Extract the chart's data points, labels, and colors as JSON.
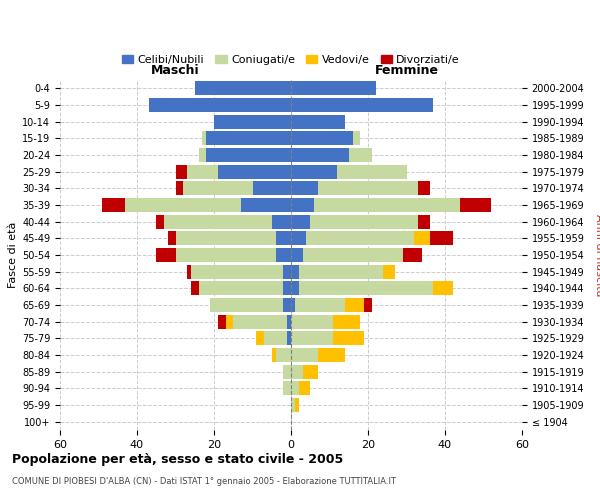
{
  "age_groups": [
    "100+",
    "95-99",
    "90-94",
    "85-89",
    "80-84",
    "75-79",
    "70-74",
    "65-69",
    "60-64",
    "55-59",
    "50-54",
    "45-49",
    "40-44",
    "35-39",
    "30-34",
    "25-29",
    "20-24",
    "15-19",
    "10-14",
    "5-9",
    "0-4"
  ],
  "birth_years": [
    "≤ 1904",
    "1905-1909",
    "1910-1914",
    "1915-1919",
    "1920-1924",
    "1925-1929",
    "1930-1934",
    "1935-1939",
    "1940-1944",
    "1945-1949",
    "1950-1954",
    "1955-1959",
    "1960-1964",
    "1965-1969",
    "1970-1974",
    "1975-1979",
    "1980-1984",
    "1985-1989",
    "1990-1994",
    "1995-1999",
    "2000-2004"
  ],
  "male": {
    "celibi": [
      0,
      0,
      0,
      0,
      0,
      1,
      1,
      2,
      2,
      2,
      4,
      4,
      5,
      13,
      10,
      19,
      22,
      22,
      20,
      37,
      25
    ],
    "coniugati": [
      0,
      0,
      2,
      2,
      4,
      6,
      14,
      19,
      22,
      24,
      26,
      26,
      28,
      30,
      18,
      8,
      2,
      1,
      0,
      0,
      0
    ],
    "vedovi": [
      0,
      0,
      0,
      0,
      1,
      2,
      2,
      0,
      0,
      0,
      0,
      0,
      0,
      0,
      0,
      0,
      0,
      0,
      0,
      0,
      0
    ],
    "divorziati": [
      0,
      0,
      0,
      0,
      0,
      0,
      2,
      0,
      2,
      1,
      5,
      2,
      2,
      6,
      2,
      3,
      0,
      0,
      0,
      0,
      0
    ]
  },
  "female": {
    "nubili": [
      0,
      0,
      0,
      0,
      0,
      0,
      0,
      1,
      2,
      2,
      3,
      4,
      5,
      6,
      7,
      12,
      15,
      16,
      14,
      37,
      22
    ],
    "coniugate": [
      0,
      1,
      2,
      3,
      7,
      11,
      11,
      13,
      35,
      22,
      26,
      28,
      28,
      38,
      26,
      18,
      6,
      2,
      0,
      0,
      0
    ],
    "vedove": [
      0,
      1,
      3,
      4,
      7,
      8,
      7,
      5,
      5,
      3,
      0,
      4,
      0,
      0,
      0,
      0,
      0,
      0,
      0,
      0,
      0
    ],
    "divorziate": [
      0,
      0,
      0,
      0,
      0,
      0,
      0,
      2,
      0,
      0,
      5,
      6,
      3,
      8,
      3,
      0,
      0,
      0,
      0,
      0,
      0
    ]
  },
  "colors": {
    "celibi_nubili": "#4472c4",
    "coniugati": "#c5d9a0",
    "vedovi": "#ffc000",
    "divorziati": "#c00000"
  },
  "xlim": 60,
  "title": "Popolazione per età, sesso e stato civile - 2005",
  "subtitle": "COMUNE DI PIOBESI D'ALBA (CN) - Dati ISTAT 1° gennaio 2005 - Elaborazione TUTTITALIA.IT",
  "ylabel_left": "Fasce di età",
  "ylabel_right": "Anni di nascita",
  "xlabel_left": "Maschi",
  "xlabel_right": "Femmine",
  "legend_labels": [
    "Celibi/Nubili",
    "Coniugati/e",
    "Vedovi/e",
    "Divorziati/e"
  ],
  "background_color": "#ffffff",
  "grid_color": "#cccccc"
}
